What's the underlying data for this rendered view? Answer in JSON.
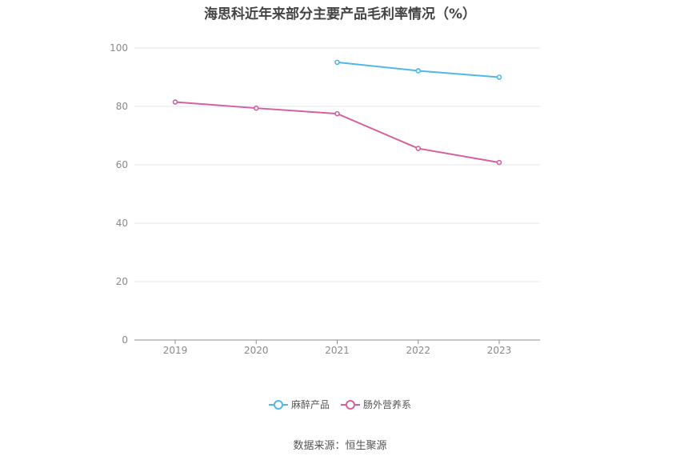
{
  "chart_data": {
    "type": "line",
    "title": "海思科近年来部分主要产品毛利率情况（%）",
    "categories": [
      "2019",
      "2020",
      "2021",
      "2022",
      "2023"
    ],
    "ylim": [
      0,
      100
    ],
    "yticks": [
      0,
      20,
      40,
      60,
      80,
      100
    ],
    "grid": true,
    "legend_position": "bottom",
    "series": [
      {
        "name": "麻醉产品",
        "color": "#4db8ea",
        "values": [
          null,
          null,
          95.1,
          92.2,
          90.0
        ]
      },
      {
        "name": "肠外营养系",
        "color": "#d4609f",
        "values": [
          81.5,
          79.4,
          77.5,
          65.6,
          60.8
        ]
      }
    ]
  },
  "source": "数据来源：恒生聚源"
}
